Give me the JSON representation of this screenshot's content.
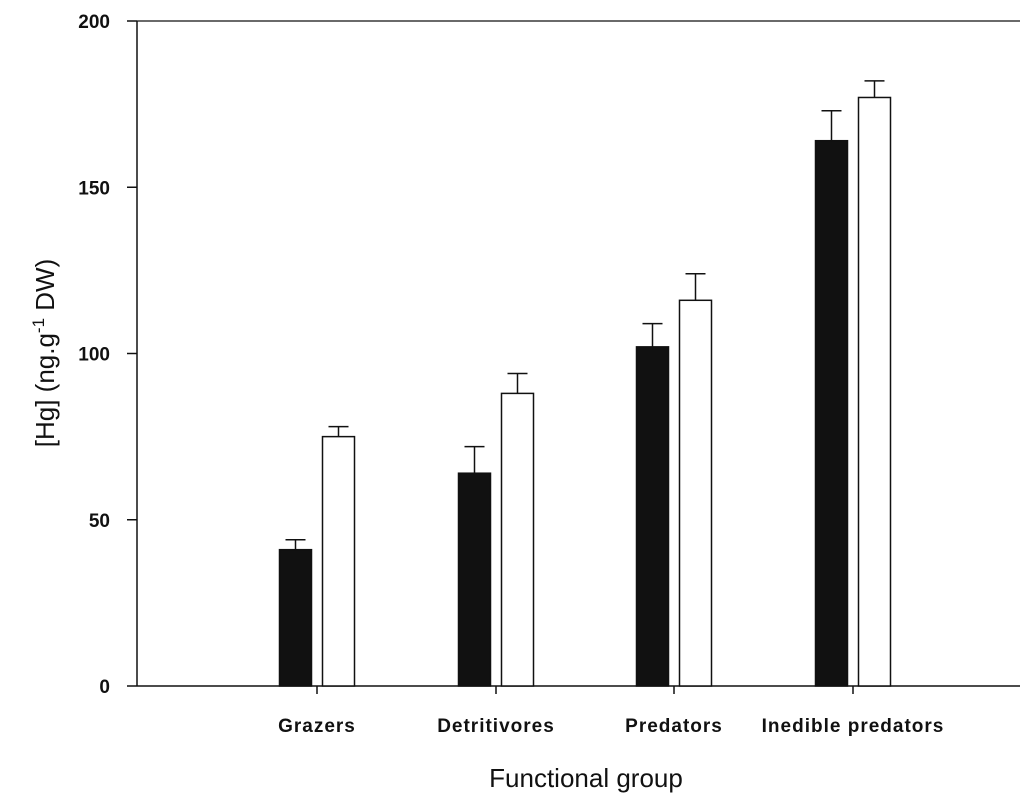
{
  "chart_data": {
    "type": "bar",
    "title": "",
    "xlabel": "Functional group",
    "ylabel": "[Hg] (ng.g",
    "ylabel_superscript": "-1",
    "ylabel_suffix": " DW)",
    "ylim": [
      0,
      200
    ],
    "yticks": [
      0,
      50,
      100,
      150,
      200
    ],
    "categories": [
      "Grazers",
      "Detritivores",
      "Predators",
      "Inedible predators"
    ],
    "series": [
      {
        "values": [
          41,
          64,
          102,
          164
        ],
        "errors": [
          3,
          8,
          7,
          9
        ],
        "color": "#111111"
      },
      {
        "values": [
          75,
          88,
          116,
          177
        ],
        "errors": [
          3,
          6,
          8,
          5
        ],
        "color": "#ffffff"
      }
    ],
    "grid": false,
    "legend": "none"
  }
}
